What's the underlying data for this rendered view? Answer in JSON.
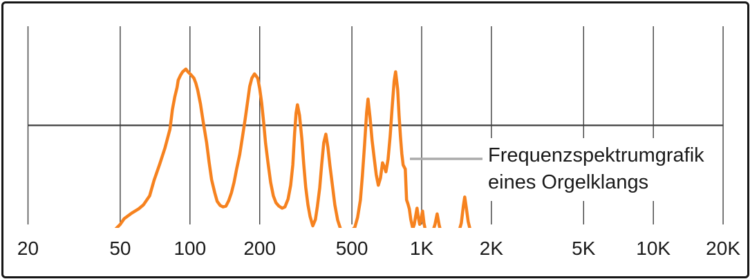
{
  "figure": {
    "callout": {
      "line1": "Frequenzspektrumgrafik",
      "line2": "eines Orgelklangs"
    },
    "colors": {
      "curve": "#F6821F",
      "grid": "#3E3E3E",
      "callout_line": "#ABABAB",
      "text": "#1A1A1A",
      "border": "#161616",
      "background": "#FFFFFF"
    }
  },
  "chart_data": {
    "type": "line",
    "title": "",
    "xlabel": "",
    "ylabel": "",
    "x_scale": "log",
    "x_unit": "Hz",
    "x_range": [
      20,
      20000
    ],
    "y_range": [
      0,
      1
    ],
    "grid": "vertical gridline at each x tick plus one horizontal mid-level line",
    "legend": "none",
    "x_ticks": [
      20,
      50,
      100,
      200,
      500,
      1000,
      2000,
      5000,
      10000,
      20000
    ],
    "x_tick_labels": [
      "20",
      "50",
      "100",
      "200",
      "500",
      "1K",
      "2K",
      "5K",
      "10K",
      "20K"
    ],
    "annotation": "Frequenzspektrumgrafik eines Orgelklangs",
    "mid_level": 0.65,
    "series": [
      {
        "name": "Frequenzspektrum eines Orgelklangs",
        "points_hz_level": [
          [
            48,
            0.013
          ],
          [
            50,
            0.039
          ],
          [
            52,
            0.074
          ],
          [
            56,
            0.108
          ],
          [
            60,
            0.134
          ],
          [
            63,
            0.16
          ],
          [
            67,
            0.216
          ],
          [
            70,
            0.312
          ],
          [
            74,
            0.411
          ],
          [
            78,
            0.511
          ],
          [
            82,
            0.628
          ],
          [
            84,
            0.749
          ],
          [
            86,
            0.827
          ],
          [
            88,
            0.887
          ],
          [
            89,
            0.931
          ],
          [
            91,
            0.961
          ],
          [
            93,
            0.983
          ],
          [
            96,
            1.0
          ],
          [
            98,
            0.983
          ],
          [
            101,
            0.965
          ],
          [
            104,
            0.944
          ],
          [
            106,
            0.913
          ],
          [
            108,
            0.87
          ],
          [
            111,
            0.784
          ],
          [
            114,
            0.675
          ],
          [
            118,
            0.545
          ],
          [
            121,
            0.424
          ],
          [
            124,
            0.316
          ],
          [
            128,
            0.234
          ],
          [
            131,
            0.182
          ],
          [
            135,
            0.156
          ],
          [
            139,
            0.147
          ],
          [
            143,
            0.152
          ],
          [
            147,
            0.186
          ],
          [
            151,
            0.234
          ],
          [
            155,
            0.299
          ],
          [
            159,
            0.381
          ],
          [
            164,
            0.472
          ],
          [
            168,
            0.567
          ],
          [
            173,
            0.688
          ],
          [
            178,
            0.814
          ],
          [
            181,
            0.892
          ],
          [
            185,
            0.944
          ],
          [
            190,
            0.97
          ],
          [
            196,
            0.944
          ],
          [
            200,
            0.879
          ],
          [
            204,
            0.788
          ],
          [
            208,
            0.671
          ],
          [
            212,
            0.541
          ],
          [
            217,
            0.424
          ],
          [
            223,
            0.299
          ],
          [
            229,
            0.216
          ],
          [
            235,
            0.173
          ],
          [
            242,
            0.152
          ],
          [
            250,
            0.139
          ],
          [
            257,
            0.147
          ],
          [
            265,
            0.195
          ],
          [
            272,
            0.281
          ],
          [
            278,
            0.407
          ],
          [
            283,
            0.602
          ],
          [
            287,
            0.727
          ],
          [
            291,
            0.779
          ],
          [
            297,
            0.714
          ],
          [
            304,
            0.567
          ],
          [
            310,
            0.407
          ],
          [
            316,
            0.268
          ],
          [
            323,
            0.16
          ],
          [
            330,
            0.087
          ],
          [
            339,
            0.03
          ],
          [
            348,
            0.069
          ],
          [
            355,
            0.152
          ],
          [
            363,
            0.264
          ],
          [
            370,
            0.407
          ],
          [
            378,
            0.545
          ],
          [
            386,
            0.597
          ],
          [
            394,
            0.515
          ],
          [
            402,
            0.403
          ],
          [
            411,
            0.29
          ],
          [
            422,
            0.16
          ],
          [
            434,
            0.065
          ],
          [
            446,
            0.013
          ],
          [
            461,
            0
          ],
          [
            498,
            0
          ],
          [
            515,
            0.022
          ],
          [
            529,
            0.082
          ],
          [
            544,
            0.19
          ],
          [
            555,
            0.342
          ],
          [
            567,
            0.532
          ],
          [
            579,
            0.732
          ],
          [
            587,
            0.814
          ],
          [
            599,
            0.697
          ],
          [
            611,
            0.558
          ],
          [
            624,
            0.45
          ],
          [
            637,
            0.346
          ],
          [
            650,
            0.281
          ],
          [
            664,
            0.325
          ],
          [
            678,
            0.42
          ],
          [
            692,
            0.39
          ],
          [
            701,
            0.364
          ],
          [
            716,
            0.442
          ],
          [
            731,
            0.584
          ],
          [
            746,
            0.762
          ],
          [
            761,
            0.926
          ],
          [
            772,
            0.983
          ],
          [
            788,
            0.874
          ],
          [
            799,
            0.714
          ],
          [
            810,
            0.584
          ],
          [
            821,
            0.476
          ],
          [
            832,
            0.407
          ],
          [
            850,
            0.381
          ],
          [
            861,
            0.19
          ],
          [
            873,
            0.165
          ],
          [
            885,
            0.134
          ],
          [
            898,
            0.069
          ],
          [
            916,
            0.013
          ],
          [
            929,
            0.039
          ],
          [
            942,
            0.091
          ],
          [
            955,
            0.139
          ],
          [
            968,
            0.078
          ],
          [
            981,
            0.039
          ],
          [
            995,
            0.078
          ],
          [
            1009,
            0.121
          ],
          [
            1023,
            0.048
          ],
          [
            1037,
            0.004
          ],
          [
            1119,
            0
          ],
          [
            1142,
            0.039
          ],
          [
            1166,
            0.104
          ],
          [
            1190,
            0.035
          ],
          [
            1206,
            0
          ],
          [
            1452,
            0
          ],
          [
            1483,
            0.048
          ],
          [
            1513,
            0.152
          ],
          [
            1534,
            0.208
          ],
          [
            1556,
            0.147
          ],
          [
            1588,
            0.056
          ],
          [
            1621,
            0.004
          ],
          [
            1655,
            0
          ]
        ]
      }
    ]
  }
}
